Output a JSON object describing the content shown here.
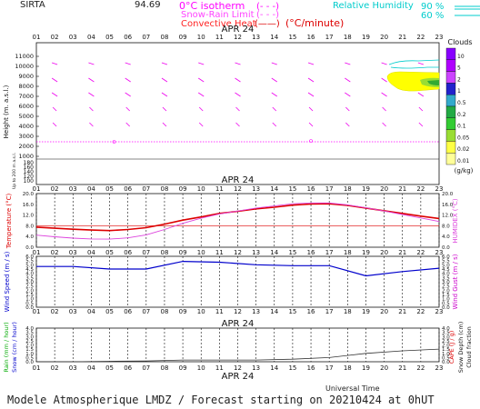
{
  "header": {
    "station": "SIRTA",
    "station_alt": "94.69",
    "iso_label": "0°C isotherm",
    "snow_label": "Snow-Rain Limit",
    "conv_label": "Convective Heat",
    "conv_unit": "(°C/minute)",
    "rh_label": "Relative Humidity",
    "rh_90": "90 %",
    "rh_60": "60 %"
  },
  "date_label": "APR 24",
  "hours": [
    "01",
    "02",
    "03",
    "04",
    "05",
    "06",
    "07",
    "08",
    "09",
    "10",
    "11",
    "12",
    "13",
    "14",
    "15",
    "16",
    "17",
    "18",
    "19",
    "20",
    "21",
    "22",
    "23"
  ],
  "colors": {
    "temperature": "#dd0000",
    "humidex": "#dd44dd",
    "wind_speed": "#0000cc",
    "snow_depth": "#333333",
    "isotherm": "#ff00ff",
    "rh": "#00cccc",
    "cloud_band": "#ffff00",
    "cloud_band_edge": "#33aa33"
  },
  "clouds_legend": {
    "title": "Clouds",
    "unit": "(g/kg)",
    "levels": [
      "10",
      "5",
      "2",
      "1",
      "0.5",
      "0.2",
      "0.1",
      "0.05",
      "0.02",
      "0.01"
    ],
    "colors": [
      "#8800ff",
      "#b000ff",
      "#cc44ff",
      "#2222cc",
      "#33aacc",
      "#22aa44",
      "#33cc33",
      "#99dd33",
      "#ffff44",
      "#ffff99"
    ]
  },
  "panels": {
    "height": {
      "ylabel": "Height  (m. a.s.l.)",
      "ylabel2": "Up to 200 m a.s.l.",
      "upper_ticks": [
        "11000",
        "10000",
        "9000",
        "8000",
        "7000",
        "6000",
        "5000",
        "4000",
        "3000",
        "2000",
        "1000"
      ],
      "lower_ticks": [
        "180",
        "160",
        "140",
        "120",
        "100"
      ]
    },
    "temperature": {
      "ylabel": "Temperature (°C)",
      "ylabel_right": "HUMIDEX (°C)",
      "ticks": [
        "0.0",
        "4.0",
        "8.0",
        "12.0",
        "16.0",
        "20.0"
      ]
    },
    "wind": {
      "ylabel": "Wind Speed (m / s)",
      "ylabel_right": "Wind Gust (m / s)",
      "ticks": [
        "0.0",
        "0.5",
        "1.0",
        "1.5",
        "2.0",
        "2.5",
        "3.0",
        "3.5",
        "4.0",
        "4.5",
        "5.0",
        "5.5",
        "6.0"
      ]
    },
    "precip": {
      "ylabel_rain": "Rain (mm / hour)",
      "ylabel_snow": "Snow (cm / hour)",
      "ylabel_cape": "CAPE (J / g)",
      "ylabel_snowdepth": "Snow Depth (cm)",
      "ylabel_cloudfrac": "Cloud fraction",
      "ticks": [
        "0.0",
        "0.5",
        "1.0",
        "1.5",
        "2.0",
        "2.5",
        "3.0",
        "3.5",
        "4.0"
      ]
    }
  },
  "xaxis_label": "Universal Time",
  "footer": "Modele Atmospherique LMDZ / Forecast starting on 20210424 at 0hUT",
  "chart_data": [
    {
      "type": "line",
      "title": "",
      "xlabel": "",
      "ylabel": "Temperature (°C)",
      "x": [
        1,
        2,
        3,
        4,
        5,
        6,
        7,
        8,
        9,
        10,
        11,
        12,
        13,
        14,
        15,
        16,
        17,
        18,
        19,
        20,
        21,
        22,
        23
      ],
      "ylim": [
        0,
        20
      ],
      "series": [
        {
          "name": "Temperature",
          "values": [
            7.5,
            7.1,
            6.7,
            6.4,
            6.2,
            6.6,
            7.3,
            8.6,
            10.1,
            11.3,
            12.6,
            13.4,
            14.3,
            14.9,
            15.7,
            16.1,
            16.2,
            15.6,
            14.6,
            13.6,
            12.6,
            11.6,
            10.7
          ]
        },
        {
          "name": "HUMIDEX",
          "values": [
            4.5,
            3.9,
            3.4,
            3.1,
            3.0,
            3.5,
            4.6,
            6.6,
            8.9,
            10.8,
            12.4,
            13.5,
            14.6,
            15.4,
            16.2,
            16.5,
            16.5,
            15.8,
            14.7,
            13.5,
            12.2,
            10.9,
            9.6
          ]
        }
      ]
    },
    {
      "type": "line",
      "title": "",
      "xlabel": "",
      "ylabel": "Wind Speed (m / s)",
      "x": [
        1,
        3,
        5,
        7,
        9,
        11,
        13,
        15,
        17,
        19,
        21,
        23
      ],
      "ylim": [
        0,
        6
      ],
      "series": [
        {
          "name": "Wind Speed",
          "values": [
            4.8,
            4.8,
            4.5,
            4.5,
            5.4,
            5.3,
            5.0,
            4.9,
            4.9,
            3.7,
            4.2,
            4.6
          ]
        }
      ]
    },
    {
      "type": "line",
      "title": "",
      "xlabel": "Universal Time",
      "ylabel": "Snow Depth (cm)",
      "x": [
        1,
        3,
        5,
        7,
        9,
        11,
        13,
        15,
        17,
        19,
        21,
        23
      ],
      "ylim": [
        0,
        4
      ],
      "series": [
        {
          "name": "Snow Depth",
          "values": [
            0.0,
            0.0,
            0.05,
            0.1,
            0.2,
            0.2,
            0.2,
            0.3,
            0.5,
            1.0,
            1.3,
            1.5
          ]
        }
      ]
    }
  ]
}
